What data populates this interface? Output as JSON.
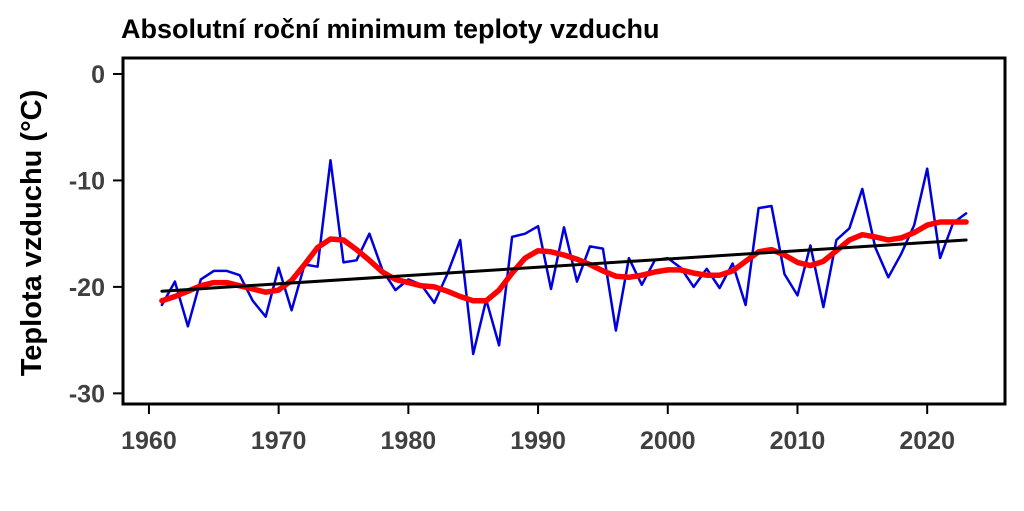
{
  "chart_data": {
    "type": "line",
    "title": "Absolutní roční minimum teploty vzduchu",
    "xlabel": "",
    "ylabel": "Teplota vzduchu (°C)",
    "xlim": [
      1958,
      2026
    ],
    "ylim": [
      -31,
      1.5
    ],
    "x_ticks": [
      "1960",
      "1970",
      "1980",
      "1990",
      "2000",
      "2010",
      "2020"
    ],
    "y_ticks": [
      "0",
      "-10",
      "-20",
      "-30"
    ],
    "grid": false,
    "legend": "none",
    "series": [
      {
        "color": "#0000dd",
        "x": [
          1961,
          1962,
          1963,
          1964,
          1965,
          1966,
          1967,
          1968,
          1969,
          1970,
          1971,
          1972,
          1973,
          1974,
          1975,
          1976,
          1977,
          1978,
          1979,
          1980,
          1981,
          1982,
          1983,
          1984,
          1985,
          1986,
          1987,
          1988,
          1989,
          1990,
          1991,
          1992,
          1993,
          1994,
          1995,
          1996,
          1997,
          1998,
          1999,
          2000,
          2001,
          2002,
          2003,
          2004,
          2005,
          2006,
          2007,
          2008,
          2009,
          2010,
          2011,
          2012,
          2013,
          2014,
          2015,
          2016,
          2017,
          2018,
          2019,
          2020,
          2021,
          2022,
          2023
        ],
        "values": [
          -21.7,
          -19.5,
          -23.7,
          -19.3,
          -18.5,
          -18.5,
          -18.9,
          -21.3,
          -22.8,
          -18.2,
          -22.2,
          -17.9,
          -18.1,
          -8.1,
          -17.7,
          -17.5,
          -15.0,
          -18.4,
          -20.3,
          -19.3,
          -19.8,
          -21.5,
          -18.8,
          -15.6,
          -26.3,
          -21.2,
          -25.5,
          -15.3,
          -15.0,
          -14.3,
          -20.2,
          -14.4,
          -19.5,
          -16.2,
          -16.4,
          -24.1,
          -17.3,
          -19.8,
          -17.5,
          -17.3,
          -18.2,
          -20.0,
          -18.3,
          -20.1,
          -17.8,
          -21.7,
          -12.6,
          -12.4,
          -18.8,
          -20.8,
          -16.1,
          -21.9,
          -15.6,
          -14.5,
          -10.8,
          -16.3,
          -19.1,
          -16.9,
          -14.2,
          -8.9,
          -17.3,
          -14.0,
          -13.1
        ]
      },
      {
        "color": "#ff0000",
        "x": [
          1961,
          1962,
          1963,
          1964,
          1965,
          1966,
          1967,
          1968,
          1969,
          1970,
          1971,
          1972,
          1973,
          1974,
          1975,
          1976,
          1977,
          1978,
          1979,
          1980,
          1981,
          1982,
          1983,
          1984,
          1985,
          1986,
          1987,
          1988,
          1989,
          1990,
          1991,
          1992,
          1993,
          1994,
          1995,
          1996,
          1997,
          1998,
          1999,
          2000,
          2001,
          2002,
          2003,
          2004,
          2005,
          2006,
          2007,
          2008,
          2009,
          2010,
          2011,
          2012,
          2013,
          2014,
          2015,
          2016,
          2017,
          2018,
          2019,
          2020,
          2021,
          2022,
          2023
        ],
        "values": [
          -21.3,
          -20.9,
          -20.4,
          -19.9,
          -19.6,
          -19.6,
          -19.9,
          -20.2,
          -20.5,
          -20.3,
          -19.4,
          -17.9,
          -16.3,
          -15.5,
          -15.6,
          -16.5,
          -17.5,
          -18.6,
          -19.3,
          -19.6,
          -19.9,
          -20.0,
          -20.4,
          -20.9,
          -21.3,
          -21.3,
          -20.3,
          -18.7,
          -17.3,
          -16.6,
          -16.7,
          -17.0,
          -17.4,
          -17.9,
          -18.5,
          -19.0,
          -19.1,
          -18.9,
          -18.6,
          -18.4,
          -18.4,
          -18.7,
          -18.9,
          -18.9,
          -18.5,
          -17.6,
          -16.7,
          -16.5,
          -17.0,
          -17.7,
          -18.0,
          -17.6,
          -16.6,
          -15.6,
          -15.1,
          -15.3,
          -15.6,
          -15.4,
          -14.9,
          -14.2,
          -13.9,
          -13.9,
          -13.9
        ]
      },
      {
        "color": "#000000",
        "x": [
          1961,
          2023
        ],
        "values": [
          -20.4,
          -15.6
        ]
      }
    ]
  }
}
